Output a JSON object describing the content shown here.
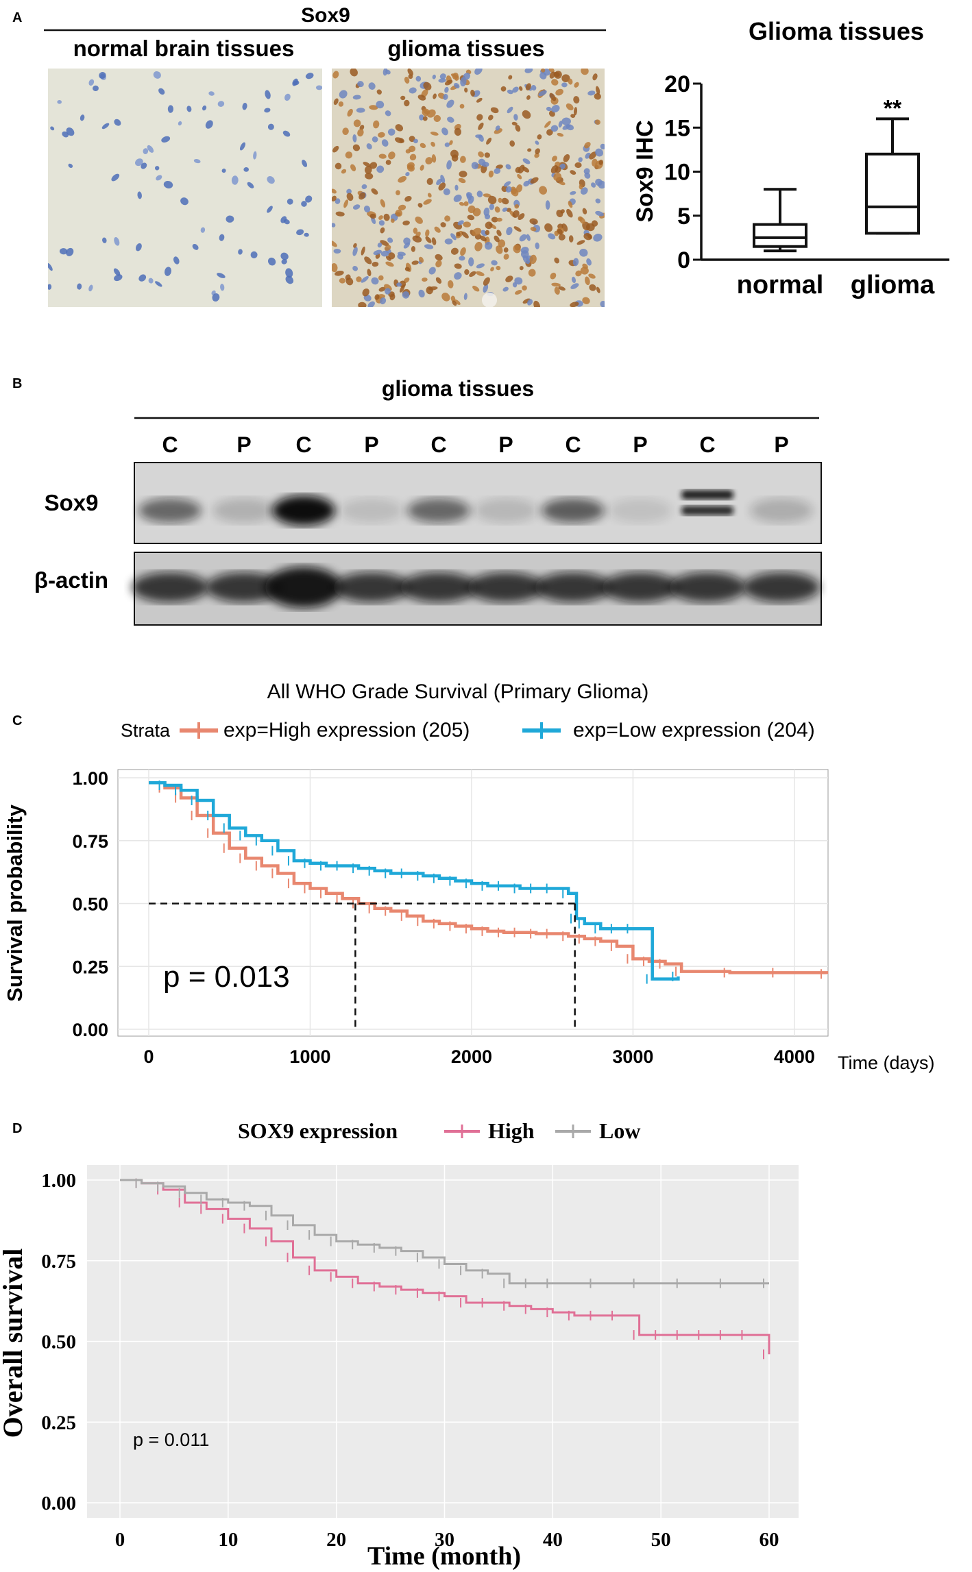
{
  "panelA": {
    "label": "A",
    "stain_title": "Sox9",
    "img_left_title": "normal brain tissues",
    "img_right_title": "glioma tissues",
    "boxplot": {
      "title": "Glioma tissues",
      "ylabel": "Sox9 IHC",
      "significance": "**"
    }
  },
  "panelB": {
    "label": "B",
    "title": "glioma tissues",
    "lanes": [
      "C",
      "P",
      "C",
      "P",
      "C",
      "P",
      "C",
      "P",
      "C",
      "P"
    ],
    "rows": [
      "Sox9",
      "β-actin"
    ]
  },
  "panelC": {
    "label": "C",
    "p_value": "p = 0.013"
  },
  "panelD": {
    "label": "D",
    "p_value": "p = 0.011"
  },
  "chart_data": [
    {
      "id": "A-boxplot",
      "type": "box",
      "title": "Glioma tissues",
      "xlabel": "",
      "ylabel": "Sox9 IHC",
      "categories": [
        "normal",
        "glioma"
      ],
      "ylim": [
        0,
        20
      ],
      "yticks": [
        "0",
        "5",
        "10",
        "15",
        "20"
      ],
      "boxes": [
        {
          "name": "normal",
          "min": 1,
          "q1": 1.5,
          "median": 2.5,
          "q3": 4,
          "max": 8
        },
        {
          "name": "glioma",
          "min": 3,
          "q1": 3,
          "median": 6,
          "q3": 12,
          "max": 16
        }
      ],
      "annotation": "**"
    },
    {
      "id": "C-km",
      "type": "line",
      "title": "All WHO Grade Survival (Primary Glioma)",
      "xlabel": "Time (days)",
      "ylabel": "Survival probability",
      "legend_title": "Strata",
      "xlim": [
        0,
        4200
      ],
      "ylim": [
        0,
        1
      ],
      "xticks": [
        "0",
        "1000",
        "2000",
        "3000",
        "4000"
      ],
      "yticks": [
        "0.00",
        "0.25",
        "0.50",
        "0.75",
        "1.00"
      ],
      "median_survival": [
        1280,
        2640
      ],
      "annotation": "p = 0.013",
      "series": [
        {
          "name": "exp=High expression (205)",
          "color": "#e8876f",
          "x": [
            0,
            100,
            200,
            300,
            400,
            500,
            600,
            700,
            800,
            900,
            1000,
            1100,
            1200,
            1300,
            1400,
            1500,
            1600,
            1700,
            1800,
            1900,
            2000,
            2100,
            2200,
            2300,
            2400,
            2500,
            2600,
            2700,
            2800,
            2900,
            3000,
            3100,
            3200,
            3300,
            3600,
            3900,
            4200
          ],
          "y": [
            0.98,
            0.96,
            0.92,
            0.85,
            0.78,
            0.72,
            0.68,
            0.65,
            0.62,
            0.58,
            0.56,
            0.54,
            0.52,
            0.5,
            0.48,
            0.47,
            0.45,
            0.43,
            0.42,
            0.41,
            0.4,
            0.39,
            0.385,
            0.385,
            0.38,
            0.38,
            0.37,
            0.36,
            0.35,
            0.33,
            0.28,
            0.27,
            0.26,
            0.23,
            0.225,
            0.225,
            0.22
          ]
        },
        {
          "name": "exp=Low expression (204)",
          "color": "#1fa8d8",
          "x": [
            0,
            100,
            200,
            300,
            400,
            500,
            600,
            700,
            800,
            900,
            1000,
            1100,
            1200,
            1300,
            1400,
            1500,
            1600,
            1700,
            1800,
            1900,
            2000,
            2100,
            2200,
            2300,
            2400,
            2500,
            2600,
            2650,
            2700,
            2800,
            2900,
            3000,
            3120,
            3280
          ],
          "y": [
            0.98,
            0.97,
            0.95,
            0.91,
            0.85,
            0.8,
            0.77,
            0.75,
            0.71,
            0.67,
            0.66,
            0.65,
            0.65,
            0.64,
            0.63,
            0.62,
            0.62,
            0.61,
            0.6,
            0.59,
            0.58,
            0.57,
            0.57,
            0.56,
            0.56,
            0.56,
            0.54,
            0.44,
            0.42,
            0.4,
            0.4,
            0.4,
            0.2,
            0.21
          ]
        }
      ]
    },
    {
      "id": "D-km",
      "type": "line",
      "title": "",
      "xlabel": "Time (month)",
      "ylabel": "Overall survival",
      "legend_title": "SOX9 expression",
      "xlim": [
        0,
        60
      ],
      "ylim": [
        0,
        1
      ],
      "xticks": [
        "0",
        "10",
        "20",
        "30",
        "40",
        "50",
        "60"
      ],
      "yticks": [
        "0.00",
        "0.25",
        "0.50",
        "0.75",
        "1.00"
      ],
      "annotation": "p = 0.011",
      "series": [
        {
          "name": "High",
          "color": "#e07096",
          "x": [
            0,
            2,
            4,
            6,
            8,
            10,
            12,
            14,
            16,
            18,
            20,
            22,
            24,
            26,
            28,
            30,
            32,
            34,
            36,
            38,
            40,
            42,
            44,
            46,
            48,
            50,
            52,
            54,
            56,
            58,
            60
          ],
          "y": [
            1.0,
            0.99,
            0.97,
            0.93,
            0.91,
            0.88,
            0.85,
            0.81,
            0.76,
            0.72,
            0.7,
            0.68,
            0.67,
            0.66,
            0.65,
            0.64,
            0.62,
            0.62,
            0.61,
            0.6,
            0.59,
            0.58,
            0.58,
            0.58,
            0.52,
            0.52,
            0.52,
            0.52,
            0.52,
            0.52,
            0.46
          ]
        },
        {
          "name": "Low",
          "color": "#a9a9a9",
          "x": [
            0,
            2,
            4,
            6,
            8,
            10,
            12,
            14,
            16,
            18,
            20,
            22,
            24,
            26,
            28,
            30,
            32,
            34,
            36,
            38,
            40,
            44,
            48,
            52,
            56,
            60
          ],
          "y": [
            1.0,
            0.99,
            0.98,
            0.96,
            0.94,
            0.93,
            0.92,
            0.89,
            0.86,
            0.83,
            0.81,
            0.8,
            0.79,
            0.78,
            0.76,
            0.74,
            0.72,
            0.71,
            0.68,
            0.68,
            0.68,
            0.68,
            0.68,
            0.68,
            0.68,
            0.68
          ]
        }
      ]
    }
  ]
}
